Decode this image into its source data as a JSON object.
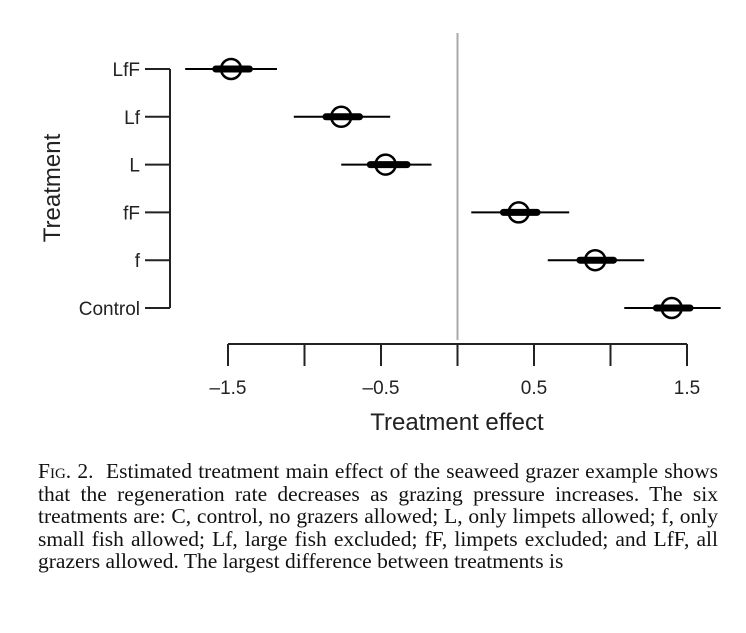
{
  "chart_data": {
    "type": "scatter",
    "title": "",
    "xlabel": "Treatment effect",
    "ylabel": "Treatment",
    "xlim": [
      -1.5,
      1.5
    ],
    "xticks": [
      -1.5,
      -1.0,
      -0.5,
      0.0,
      0.5,
      1.0,
      1.5
    ],
    "xtick_labels": [
      "–1.5",
      "",
      "–0.5",
      "",
      "0.5",
      "",
      "1.5"
    ],
    "reference_line": 0,
    "categories": [
      "LfF",
      "Lf",
      "L",
      "fF",
      "f",
      "Control"
    ],
    "estimates": [
      -1.48,
      -0.76,
      -0.47,
      0.4,
      0.9,
      1.4
    ],
    "ci_inner": [
      [
        -1.58,
        -1.36
      ],
      [
        -0.86,
        -0.64
      ],
      [
        -0.57,
        -0.33
      ],
      [
        0.3,
        0.52
      ],
      [
        0.8,
        1.02
      ],
      [
        1.3,
        1.52
      ]
    ],
    "ci_outer": [
      [
        -1.78,
        -1.18
      ],
      [
        -1.07,
        -0.44
      ],
      [
        -0.76,
        -0.17
      ],
      [
        0.09,
        0.73
      ],
      [
        0.59,
        1.22
      ],
      [
        1.09,
        1.72
      ]
    ]
  },
  "caption": {
    "label": "Fig. 2.",
    "text": "Estimated treatment main effect of the seaweed grazer example shows that the regeneration rate decreases as grazing pressure increases. The six treatments are: C, control, no grazers allowed; L, only limpets allowed; f, only small fish allowed; Lf, large fish excluded; fF, limpets excluded; and LfF, all grazers allowed. The largest difference between treatments is"
  }
}
